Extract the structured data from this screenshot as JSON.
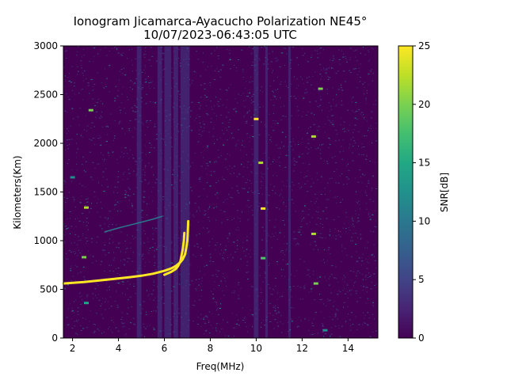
{
  "chart_data": {
    "type": "heatmap",
    "title_line1": "Ionogram Jicamarca-Ayacucho Polarization NE45°",
    "title_line2": "10/07/2023-06:43:05 UTC",
    "xlabel": "Freq(MHz)",
    "ylabel": "Kilometers(Km)",
    "xlim": [
      1.6,
      15.3
    ],
    "ylim": [
      0,
      3000
    ],
    "xticks": [
      2,
      4,
      6,
      8,
      10,
      12,
      14
    ],
    "yticks": [
      0,
      500,
      1000,
      1500,
      2000,
      2500,
      3000
    ],
    "colorbar": {
      "label": "SNR[dB]",
      "range": [
        0,
        25
      ],
      "ticks": [
        0,
        5,
        10,
        15,
        20,
        25
      ],
      "colormap": "viridis"
    },
    "background_color": "#440154",
    "traces": [
      {
        "name": "main-echo-trace",
        "snr": 25,
        "points": [
          [
            1.6,
            560
          ],
          [
            2.5,
            575
          ],
          [
            3.5,
            600
          ],
          [
            4.5,
            625
          ],
          [
            5.0,
            640
          ],
          [
            5.5,
            660
          ],
          [
            6.0,
            690
          ],
          [
            6.3,
            715
          ],
          [
            6.5,
            740
          ],
          [
            6.7,
            780
          ],
          [
            6.8,
            810
          ],
          [
            6.9,
            860
          ],
          [
            6.95,
            920
          ],
          [
            7.0,
            1000
          ],
          [
            7.02,
            1100
          ],
          [
            7.04,
            1200
          ]
        ]
      },
      {
        "name": "inner-echo-trace",
        "snr": 25,
        "points": [
          [
            6.0,
            650
          ],
          [
            6.3,
            680
          ],
          [
            6.5,
            710
          ],
          [
            6.6,
            740
          ],
          [
            6.7,
            790
          ],
          [
            6.75,
            850
          ],
          [
            6.8,
            910
          ],
          [
            6.85,
            1000
          ],
          [
            6.87,
            1080
          ]
        ]
      },
      {
        "name": "second-hop-trace",
        "snr": 10,
        "points": [
          [
            3.4,
            1090
          ],
          [
            4.0,
            1130
          ],
          [
            4.5,
            1160
          ],
          [
            5.0,
            1190
          ],
          [
            5.5,
            1220
          ],
          [
            5.9,
            1250
          ]
        ]
      }
    ],
    "features": [
      {
        "x": 2.8,
        "y": 2340,
        "snr": 20
      },
      {
        "x": 2.6,
        "y": 1340,
        "snr": 22
      },
      {
        "x": 2.5,
        "y": 830,
        "snr": 20
      },
      {
        "x": 2.6,
        "y": 360,
        "snr": 15
      },
      {
        "x": 2.0,
        "y": 1650,
        "snr": 12
      },
      {
        "x": 10.0,
        "y": 2250,
        "snr": 25
      },
      {
        "x": 10.2,
        "y": 1800,
        "snr": 22
      },
      {
        "x": 10.3,
        "y": 1330,
        "snr": 25
      },
      {
        "x": 10.3,
        "y": 820,
        "snr": 18
      },
      {
        "x": 12.5,
        "y": 1070,
        "snr": 22
      },
      {
        "x": 12.6,
        "y": 560,
        "snr": 20
      },
      {
        "x": 12.5,
        "y": 2070,
        "snr": 22
      },
      {
        "x": 12.8,
        "y": 2560,
        "snr": 20
      },
      {
        "x": 13.0,
        "y": 80,
        "snr": 12
      }
    ],
    "interference_bands_mhz": [
      [
        4.8,
        5.0
      ],
      [
        5.7,
        5.9
      ],
      [
        6.0,
        6.3
      ],
      [
        6.4,
        6.6
      ],
      [
        6.7,
        7.1
      ],
      [
        9.9,
        10.1
      ],
      [
        10.4,
        10.5
      ],
      [
        11.4,
        11.5
      ]
    ]
  }
}
